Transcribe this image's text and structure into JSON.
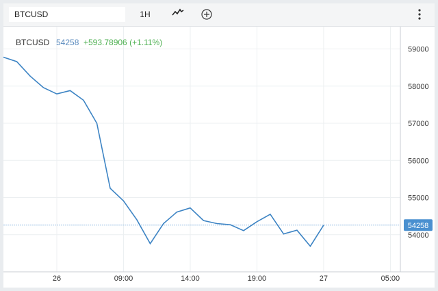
{
  "toolbar": {
    "symbol": "BTCUSD",
    "interval": "1H",
    "chart_type_icon": "line-chart-icon",
    "compare_icon": "plus-circle-icon",
    "menu_icon": "vertical-dots-icon"
  },
  "legend": {
    "symbol": "BTCUSD",
    "price": "54258",
    "change": "+593.78906 (+1.11%)",
    "price_color": "#5b8bbe",
    "change_color": "#4caf50"
  },
  "price_label": "54258",
  "colors": {
    "line": "#3d84c4",
    "label_bg": "#4a90d0",
    "grid": "#eceff1"
  },
  "chart_data": {
    "type": "line",
    "title": "",
    "xlabel": "",
    "ylabel": "",
    "ylim": [
      53000,
      59600
    ],
    "x_ticks": [
      {
        "label": "26",
        "x": 4
      },
      {
        "label": "09:00",
        "x": 9
      },
      {
        "label": "14:00",
        "x": 14
      },
      {
        "label": "19:00",
        "x": 19
      },
      {
        "label": "27",
        "x": 24
      },
      {
        "label": "05:00",
        "x": 29
      }
    ],
    "y_ticks": [
      54000,
      55000,
      56000,
      57000,
      58000,
      59000
    ],
    "current_value": 54258,
    "series": [
      {
        "x": [
          0,
          1,
          2,
          3,
          4,
          5,
          6,
          7,
          8,
          9,
          10,
          11,
          12,
          13,
          14,
          15,
          16,
          17,
          18,
          19,
          20,
          21,
          22,
          23,
          24
        ],
        "values": [
          58780,
          58660,
          58270,
          57960,
          57790,
          57880,
          57620,
          57000,
          55250,
          54910,
          54400,
          53760,
          54300,
          54610,
          54720,
          54380,
          54300,
          54270,
          54110,
          54350,
          54550,
          54020,
          54120,
          53690,
          54258
        ]
      }
    ]
  }
}
